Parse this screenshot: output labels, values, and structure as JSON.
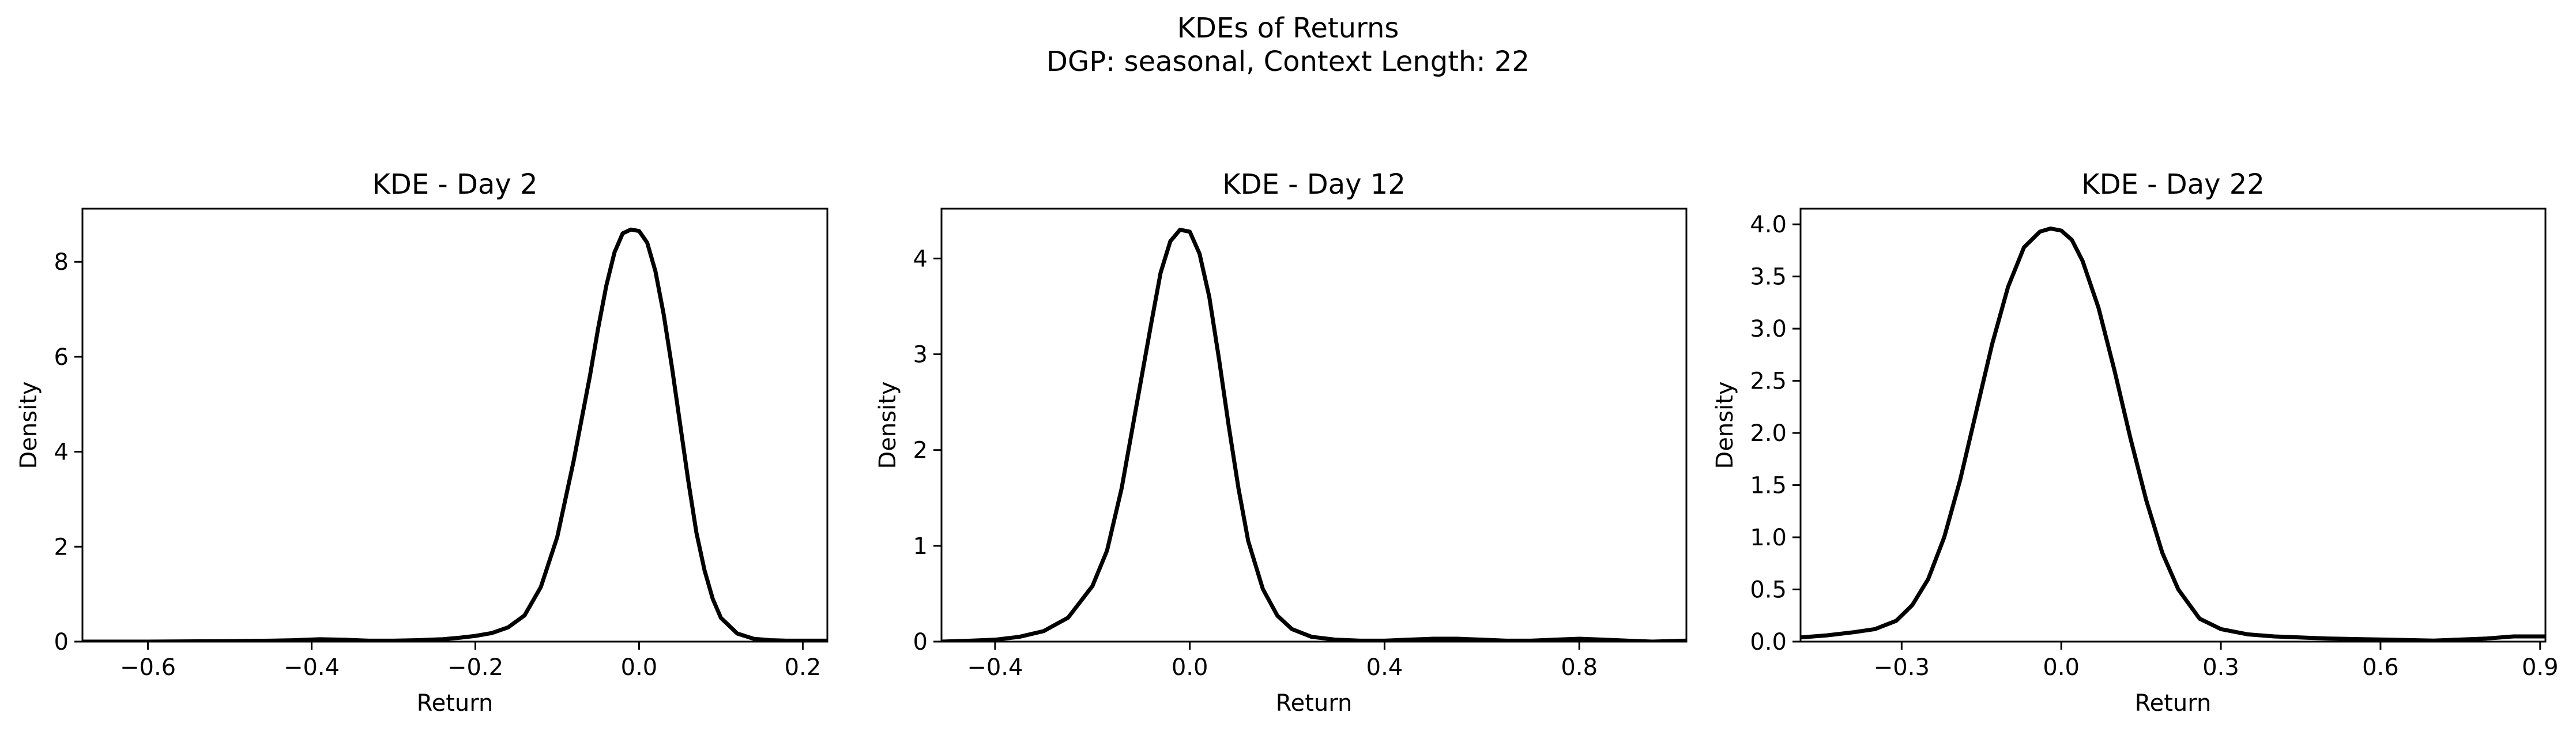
{
  "figure": {
    "title": "KDEs of Returns",
    "subtitle": "DGP: seasonal, Context Length: 22"
  },
  "style": {
    "line_color": "#000000",
    "axis_color": "#000000"
  },
  "chart_data": [
    {
      "type": "line",
      "title": "KDE - Day 2",
      "xlabel": "Return",
      "ylabel": "Density",
      "xlim": [
        -0.68,
        0.23
      ],
      "ylim": [
        0,
        9.12
      ],
      "xticks": [
        -0.6,
        -0.4,
        -0.2,
        0.0,
        0.2
      ],
      "xtick_labels": [
        "−0.6",
        "−0.4",
        "−0.2",
        "0.0",
        "0.2"
      ],
      "yticks": [
        0,
        2,
        4,
        6,
        8
      ],
      "ytick_labels": [
        "0",
        "2",
        "4",
        "6",
        "8"
      ],
      "series": [
        {
          "x": [
            -0.68,
            -0.6,
            -0.5,
            -0.45,
            -0.42,
            -0.39,
            -0.36,
            -0.33,
            -0.3,
            -0.27,
            -0.24,
            -0.22,
            -0.2,
            -0.18,
            -0.16,
            -0.14,
            -0.12,
            -0.1,
            -0.08,
            -0.06,
            -0.05,
            -0.04,
            -0.03,
            -0.02,
            -0.01,
            0.0,
            0.01,
            0.02,
            0.03,
            0.04,
            0.05,
            0.06,
            0.07,
            0.08,
            0.09,
            0.1,
            0.12,
            0.14,
            0.16,
            0.18,
            0.2,
            0.23
          ],
          "y": [
            0.0,
            0.0,
            0.01,
            0.02,
            0.03,
            0.05,
            0.04,
            0.02,
            0.02,
            0.03,
            0.05,
            0.08,
            0.12,
            0.18,
            0.3,
            0.55,
            1.15,
            2.2,
            3.8,
            5.6,
            6.6,
            7.5,
            8.2,
            8.6,
            8.68,
            8.65,
            8.4,
            7.8,
            6.9,
            5.8,
            4.6,
            3.4,
            2.3,
            1.5,
            0.9,
            0.5,
            0.17,
            0.06,
            0.03,
            0.02,
            0.02,
            0.02
          ]
        }
      ]
    },
    {
      "type": "line",
      "title": "KDE - Day 12",
      "xlabel": "Return",
      "ylabel": "Density",
      "xlim": [
        -0.51,
        1.02
      ],
      "ylim": [
        0,
        4.52
      ],
      "xticks": [
        -0.4,
        0.0,
        0.4,
        0.8
      ],
      "xtick_labels": [
        "−0.4",
        "0.0",
        "0.4",
        "0.8"
      ],
      "yticks": [
        0,
        1,
        2,
        3,
        4
      ],
      "ytick_labels": [
        "0",
        "1",
        "2",
        "3",
        "4"
      ],
      "series": [
        {
          "x": [
            -0.51,
            -0.45,
            -0.4,
            -0.35,
            -0.3,
            -0.25,
            -0.2,
            -0.17,
            -0.14,
            -0.11,
            -0.08,
            -0.06,
            -0.04,
            -0.02,
            0.0,
            0.02,
            0.04,
            0.06,
            0.08,
            0.1,
            0.12,
            0.15,
            0.18,
            0.21,
            0.25,
            0.3,
            0.35,
            0.4,
            0.45,
            0.5,
            0.55,
            0.6,
            0.65,
            0.7,
            0.75,
            0.8,
            0.85,
            0.9,
            0.95,
            1.02
          ],
          "y": [
            0.0,
            0.01,
            0.02,
            0.05,
            0.11,
            0.25,
            0.58,
            0.95,
            1.6,
            2.45,
            3.3,
            3.85,
            4.18,
            4.3,
            4.28,
            4.05,
            3.6,
            2.95,
            2.25,
            1.6,
            1.05,
            0.55,
            0.27,
            0.13,
            0.05,
            0.02,
            0.01,
            0.01,
            0.02,
            0.03,
            0.03,
            0.02,
            0.01,
            0.01,
            0.02,
            0.03,
            0.02,
            0.01,
            0.0,
            0.01
          ]
        }
      ]
    },
    {
      "type": "line",
      "title": "KDE - Day 22",
      "xlabel": "Return",
      "ylabel": "Density",
      "xlim": [
        -0.49,
        0.91
      ],
      "ylim": [
        0,
        4.15
      ],
      "xticks": [
        -0.3,
        0.0,
        0.3,
        0.6,
        0.9
      ],
      "xtick_labels": [
        "−0.3",
        "0.0",
        "0.3",
        "0.6",
        "0.9"
      ],
      "yticks": [
        0,
        0.5,
        1.0,
        1.5,
        2.0,
        2.5,
        3.0,
        3.5,
        4.0
      ],
      "ytick_labels": [
        "0.0",
        "0.5",
        "1.0",
        "1.5",
        "2.0",
        "2.5",
        "3.0",
        "3.5",
        "4.0"
      ],
      "series": [
        {
          "x": [
            -0.49,
            -0.44,
            -0.39,
            -0.35,
            -0.31,
            -0.28,
            -0.25,
            -0.22,
            -0.19,
            -0.16,
            -0.13,
            -0.1,
            -0.07,
            -0.04,
            -0.02,
            0.0,
            0.02,
            0.04,
            0.07,
            0.1,
            0.13,
            0.16,
            0.19,
            0.22,
            0.26,
            0.3,
            0.35,
            0.4,
            0.5,
            0.6,
            0.7,
            0.8,
            0.85,
            0.91
          ],
          "y": [
            0.04,
            0.06,
            0.09,
            0.12,
            0.2,
            0.35,
            0.6,
            1.0,
            1.55,
            2.2,
            2.85,
            3.4,
            3.78,
            3.93,
            3.96,
            3.94,
            3.85,
            3.65,
            3.2,
            2.6,
            1.95,
            1.35,
            0.85,
            0.5,
            0.22,
            0.12,
            0.07,
            0.05,
            0.03,
            0.02,
            0.01,
            0.03,
            0.05,
            0.05
          ]
        }
      ]
    }
  ]
}
